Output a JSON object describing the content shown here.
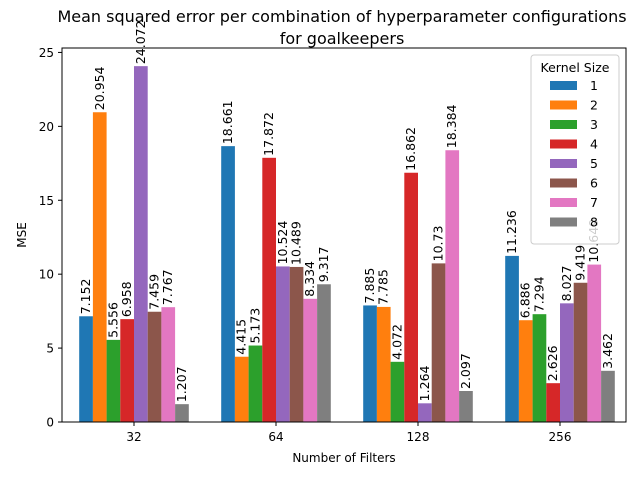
{
  "chart_data": {
    "type": "bar",
    "title_lines": [
      "Mean squared error per combination of hyperparameter configurations",
      "for goalkeepers"
    ],
    "xlabel": "Number of Filters",
    "ylabel": "MSE",
    "categories": [
      "32",
      "64",
      "128",
      "256"
    ],
    "ylim": [
      0,
      25.3
    ],
    "yticks": [
      0,
      5,
      10,
      15,
      20,
      25
    ],
    "grid": false,
    "legend": {
      "title": "Kernel Size",
      "placement": "top-right"
    },
    "series": [
      {
        "name": "1",
        "color": "#1f77b4",
        "values": [
          7.152,
          18.661,
          7.885,
          11.236
        ],
        "labels": [
          "7.152",
          "18.661",
          "7.885",
          "11.236"
        ]
      },
      {
        "name": "2",
        "color": "#ff7f0e",
        "values": [
          20.954,
          4.415,
          7.785,
          6.886
        ],
        "labels": [
          "20.954",
          "4.415",
          "7.785",
          "6.886"
        ]
      },
      {
        "name": "3",
        "color": "#2ca02c",
        "values": [
          5.556,
          5.173,
          4.072,
          7.294
        ],
        "labels": [
          "5.556",
          "5.173",
          "4.072",
          "7.294"
        ]
      },
      {
        "name": "4",
        "color": "#d62728",
        "values": [
          6.958,
          17.872,
          16.862,
          2.626
        ],
        "labels": [
          "6.958",
          "17.872",
          "16.862",
          "2.626"
        ]
      },
      {
        "name": "5",
        "color": "#9467bd",
        "values": [
          24.072,
          10.524,
          1.264,
          8.027
        ],
        "labels": [
          "24.072",
          "10.524",
          "1.264",
          "8.027"
        ]
      },
      {
        "name": "6",
        "color": "#8c564b",
        "values": [
          7.459,
          10.489,
          10.73,
          9.419
        ],
        "labels": [
          "7.459",
          "10.489",
          "10.73",
          "9.419"
        ]
      },
      {
        "name": "7",
        "color": "#e377c2",
        "values": [
          7.767,
          8.334,
          18.384,
          10.649
        ],
        "labels": [
          "7.767",
          "8.334",
          "18.384",
          "10.649"
        ]
      },
      {
        "name": "8",
        "color": "#7f7f7f",
        "values": [
          1.207,
          9.317,
          2.097,
          3.462
        ],
        "labels": [
          "1.207",
          "9.317",
          "2.097",
          "3.462"
        ]
      }
    ]
  }
}
